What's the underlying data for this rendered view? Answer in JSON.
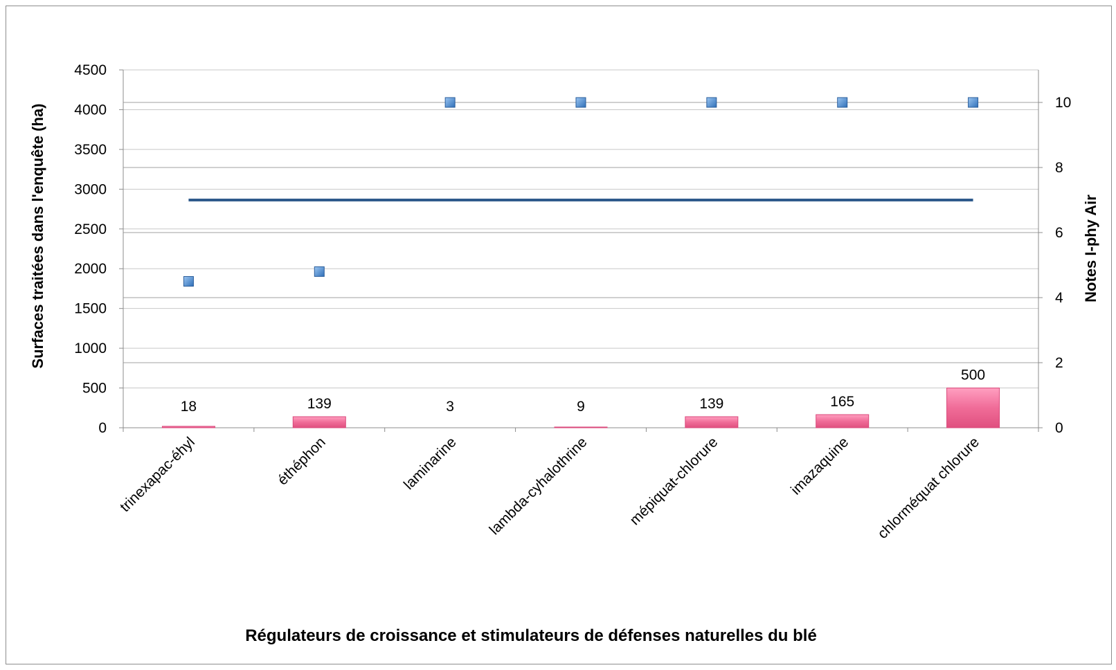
{
  "chart_data": {
    "type": "bar",
    "categories": [
      "trinexapac-éhyl",
      "éthéphon",
      "laminarine",
      "lambda-cyhalothrine",
      "mépiquat-chlorure",
      "imazaquine",
      "chlorméquat chlorure"
    ],
    "series": [
      {
        "kind": "bar",
        "axis": "left",
        "values": [
          18,
          139,
          3,
          9,
          139,
          165,
          500
        ],
        "data_labels": [
          "18",
          "139",
          "3",
          "9",
          "139",
          "165",
          "500"
        ],
        "color": "#f06c98"
      },
      {
        "kind": "scatter",
        "axis": "right",
        "values": [
          4.5,
          4.8,
          10,
          10,
          10,
          10,
          10
        ],
        "color": "#4f8fd8"
      },
      {
        "kind": "line",
        "axis": "right",
        "values": [
          7,
          7,
          7,
          7,
          7,
          7,
          7
        ],
        "color": "#2e5a8c"
      }
    ],
    "xlabel": "Régulateurs de croissance et stimulateurs de défenses naturelles du blé",
    "ylabel": "Surfaces traitées dans l'enquête (ha)",
    "y2label": "Notes I-phy Air",
    "ylim": [
      0,
      4500
    ],
    "yticks": [
      0,
      500,
      1000,
      1500,
      2000,
      2500,
      3000,
      3500,
      4000,
      4500
    ],
    "y2lim": [
      0,
      11
    ],
    "y2ticks": [
      0,
      2,
      4,
      6,
      8,
      10
    ],
    "grid": "horizontal"
  }
}
